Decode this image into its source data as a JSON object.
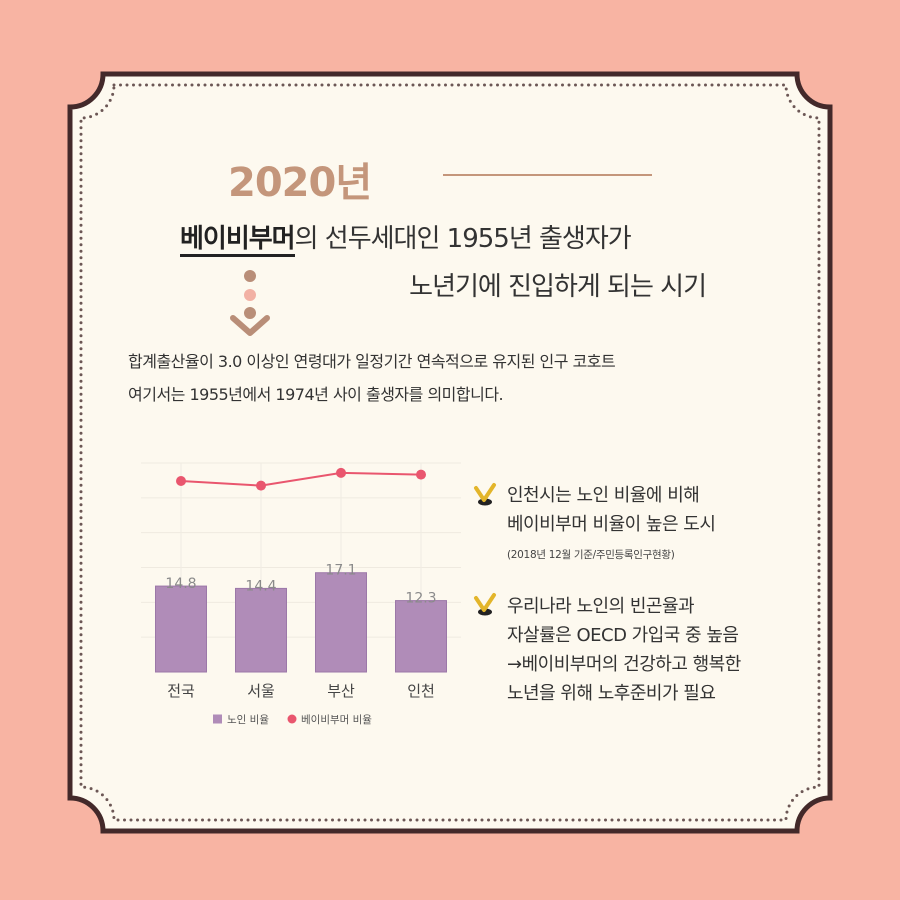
{
  "colors": {
    "background": "#F8B4A3",
    "card": "#FDF9EF",
    "frame": "#43292A",
    "dots": "#6C5755",
    "accent": "#C4967B",
    "arrow_light": "#F2B1A4",
    "text": "#333333",
    "check": "#E3B52A",
    "bar": "#B08CB8",
    "bar_border": "#9C78A8",
    "line": "#E9566E"
  },
  "icons": {
    "arrow": "down-arrow-icon",
    "check": "check-icon"
  },
  "header": {
    "year": "2020년"
  },
  "headline": {
    "highlight": "베이비부머",
    "line1_rest": "의 선두세대인 1955년 출생자가",
    "line2": "노년기에 진입하게 되는 시기"
  },
  "definition": {
    "line1": "합계출산율이 3.0 이상인 연령대가 일정기간 연속적으로 유지된 인구 코호트",
    "line2": "여기서는 1955년에서 1974년 사이 출생자를 의미합니다."
  },
  "chart_data": {
    "type": "bar",
    "title": "",
    "xlabel": "",
    "ylabel": "",
    "categories": [
      "전국",
      "서울",
      "부산",
      "인천"
    ],
    "series": [
      {
        "name": "노인 비율",
        "type": "bar",
        "values": [
          14.8,
          14.4,
          17.1,
          12.3
        ],
        "color": "#B08CB8"
      },
      {
        "name": "베이비부머 비율",
        "type": "line",
        "values": [
          32.9,
          32.1,
          34.3,
          34.0
        ],
        "color": "#E9566E"
      }
    ],
    "ylim": [
      0,
      36
    ],
    "grid": true,
    "legend": "bottom-center"
  },
  "notes": [
    {
      "lines": [
        "인천시는 노인 비율에 비해",
        "베이비부머 비율이 높은 도시"
      ],
      "source": "(2018년 12월 기준/주민등록인구현황)"
    },
    {
      "lines": [
        "우리나라 노인의 빈곤율과",
        "자살률은 OECD 가입국 중 높음",
        "→베이비부머의 건강하고 행복한",
        "노년을 위해 노후준비가 필요"
      ]
    }
  ]
}
